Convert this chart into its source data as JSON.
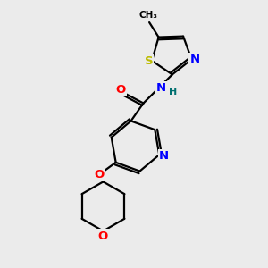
{
  "bg_color": "#ebebeb",
  "bond_color": "#000000",
  "bond_width": 1.6,
  "atom_colors": {
    "N": "#0000ff",
    "O": "#ff0000",
    "S": "#bbbb00",
    "C": "#000000",
    "H": "#007070"
  },
  "font_size": 9.5
}
